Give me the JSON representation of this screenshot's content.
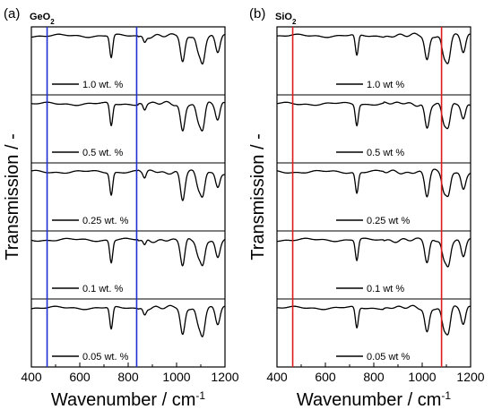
{
  "chart_data": [
    {
      "type": "line",
      "panel_label": "(a)",
      "material": "GeO",
      "material_subscript": "2",
      "xlabel": "Wavenumber / cm",
      "xlabel_superscript": "-1",
      "ylabel": "Transmission / -",
      "xlim": [
        400,
        1200
      ],
      "xticks": [
        400,
        600,
        800,
        1000,
        1200
      ],
      "marker_color": "#1f2fd0",
      "markers_x": [
        465,
        835
      ],
      "series": [
        {
          "name": "1.0 wt. %"
        },
        {
          "name": "0.5 wt. %"
        },
        {
          "name": "0.25 wt. %"
        },
        {
          "name": "0.1 wt. %"
        },
        {
          "name": "0.05 wt. %"
        }
      ],
      "absorption_bands": [
        {
          "x": 730,
          "depth": 0.75
        },
        {
          "x": 868,
          "depth": 0.2
        },
        {
          "x": 1025,
          "depth": 0.9
        },
        {
          "x": 1090,
          "depth": 0.5
        },
        {
          "x": 1108,
          "depth": 0.8
        },
        {
          "x": 1170,
          "depth": 0.55
        }
      ]
    },
    {
      "type": "line",
      "panel_label": "(b)",
      "material": "SiO",
      "material_subscript": "2",
      "xlabel": "Wavenumber / cm",
      "xlabel_superscript": "-1",
      "ylabel": "Transmission / -",
      "xlim": [
        400,
        1200
      ],
      "xticks": [
        400,
        600,
        800,
        1000,
        1200
      ],
      "marker_color": "#e01b1b",
      "markers_x": [
        465,
        1080
      ],
      "series": [
        {
          "name": "1.0 wt %"
        },
        {
          "name": "0.5 wt %"
        },
        {
          "name": "0.25 wt %"
        },
        {
          "name": "0.1 wt %"
        },
        {
          "name": "0.05 wt %"
        }
      ],
      "absorption_bands": [
        {
          "x": 730,
          "depth": 0.7
        },
        {
          "x": 1020,
          "depth": 0.8
        },
        {
          "x": 1090,
          "depth": 0.6
        },
        {
          "x": 1108,
          "depth": 0.75
        },
        {
          "x": 1170,
          "depth": 0.55
        }
      ]
    }
  ]
}
